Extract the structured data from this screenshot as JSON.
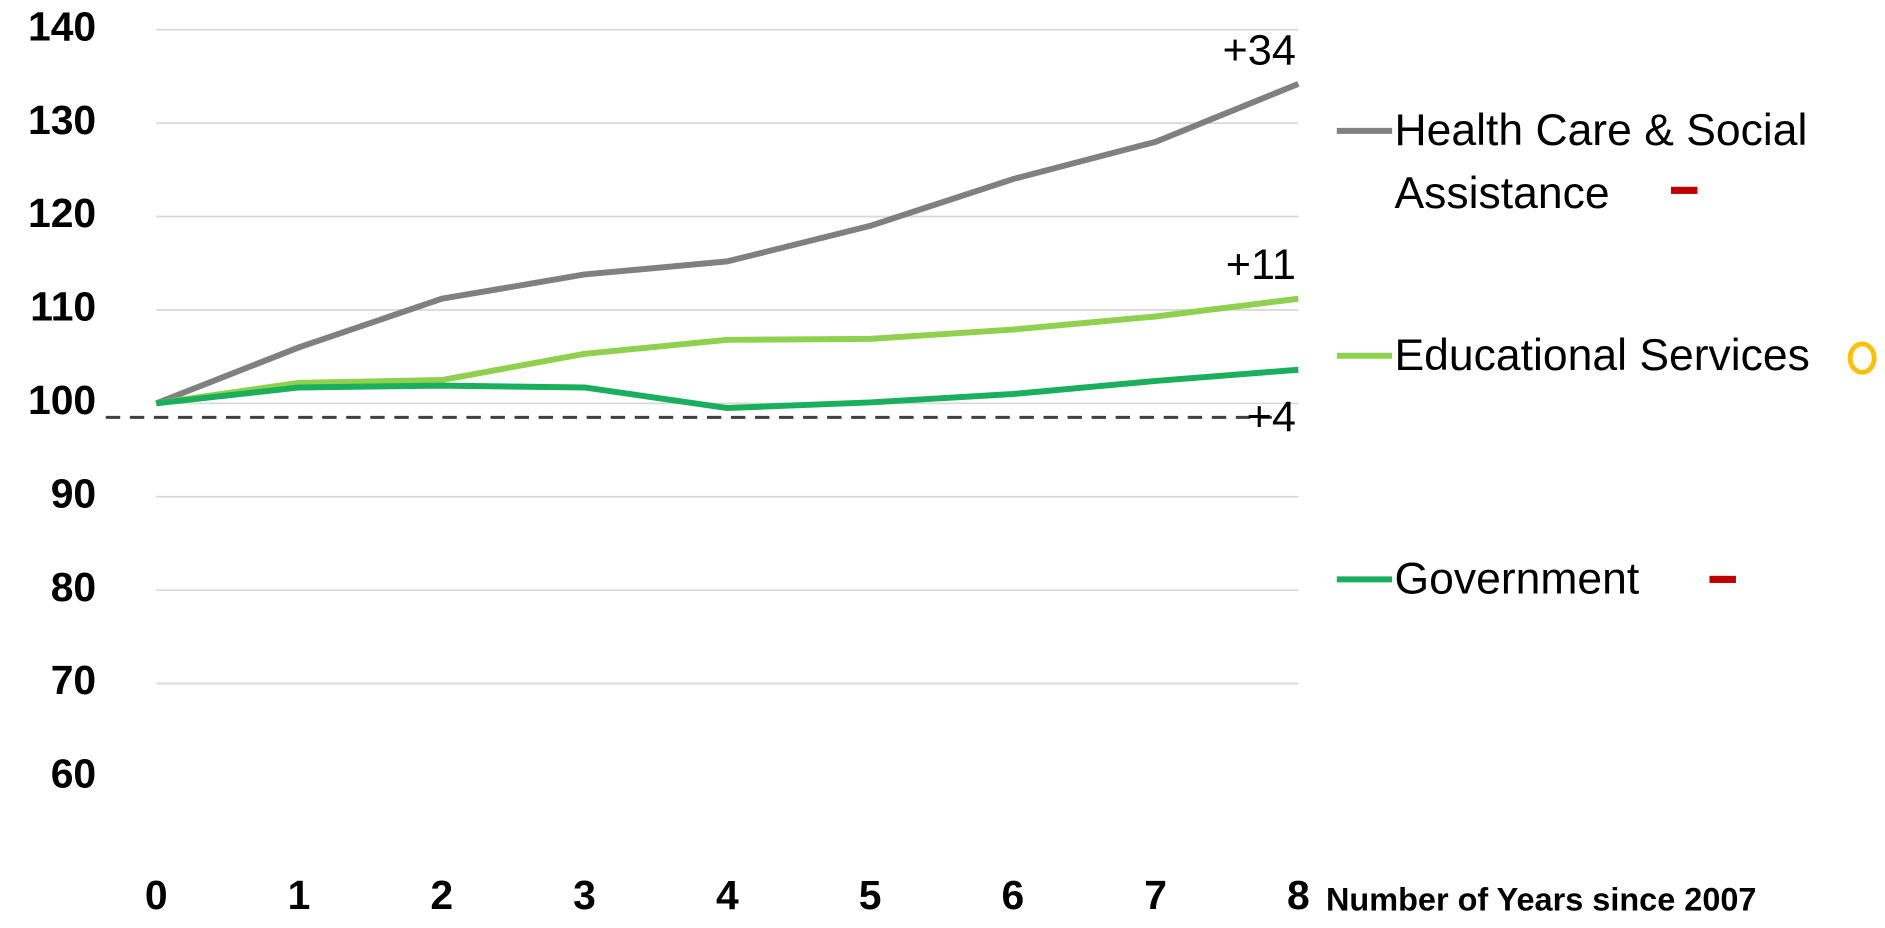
{
  "chart_data": {
    "type": "line",
    "x": [
      0,
      1,
      2,
      3,
      4,
      5,
      6,
      7,
      8
    ],
    "xlim": [
      0,
      8
    ],
    "xticks": [
      0,
      1,
      2,
      3,
      4,
      5,
      6,
      7,
      8
    ],
    "xlabel": "Number of Years since 2007",
    "ylim": [
      53,
      140
    ],
    "yticks": [
      60,
      70,
      80,
      90,
      100,
      110,
      120,
      130,
      140
    ],
    "grid": true,
    "reference_line": 98.5,
    "series": [
      {
        "name": "Health Care & Social Assistance",
        "color": "#808080",
        "values": [
          100,
          106,
          111.2,
          113.8,
          115.2,
          119,
          124,
          128,
          134.2
        ]
      },
      {
        "name": "Educational Services",
        "color": "#8fd14f",
        "values": [
          100,
          102.2,
          102.5,
          105.3,
          106.8,
          106.9,
          107.9,
          109.3,
          111.2
        ]
      },
      {
        "name": "Government",
        "color": "#1aaf5d",
        "values": [
          100,
          101.7,
          101.9,
          101.7,
          99.5,
          100.1,
          101,
          102.4,
          103.6
        ]
      }
    ],
    "annotations": [
      "+34",
      "+11",
      "+4"
    ],
    "legend": "right"
  }
}
